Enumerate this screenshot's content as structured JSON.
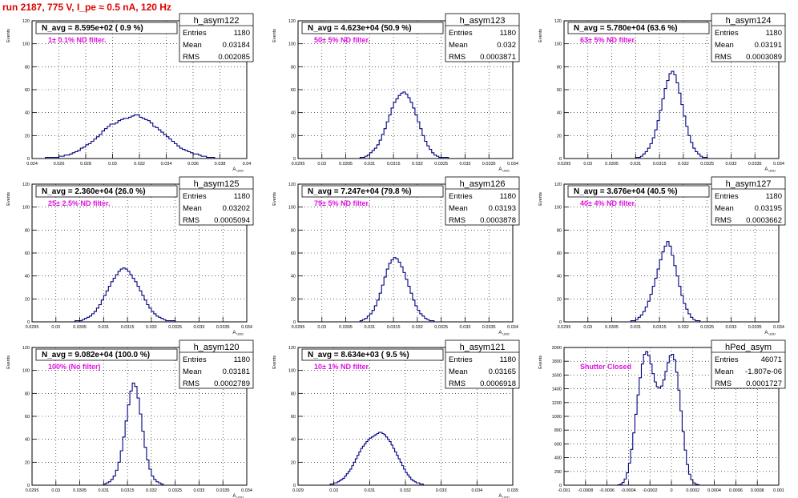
{
  "header": {
    "title": "run 2187,   775 V, I_pe ≈ 0.5 nA, 120 Hz"
  },
  "chart_data": [
    {
      "type": "histogram",
      "name": "h_asym122",
      "navg": "N_avg = 8.595e+02 ( 0.9 %)",
      "filter": "1± 0.1% ND filter.",
      "stats": {
        "entries": "1180",
        "mean": "0.03184",
        "rms": "0.002085"
      },
      "ylabel": "Events",
      "xlabel": "A_UDD",
      "xlim": [
        0.024,
        0.04
      ],
      "ylim": [
        0,
        120
      ],
      "xticks": [
        "0.024",
        "0.026",
        "0.028",
        "0.03",
        "0.032",
        "0.034",
        "0.036",
        "0.038",
        "0.04"
      ],
      "yticks": [
        "0",
        "20",
        "40",
        "60",
        "80",
        "100",
        "120"
      ],
      "bins": {
        "x0": 0.025,
        "width": 0.0002,
        "values": [
          1,
          1,
          1,
          1,
          1,
          2,
          2,
          3,
          3,
          4,
          5,
          6,
          7,
          9,
          10,
          12,
          13,
          15,
          17,
          19,
          21,
          24,
          26,
          28,
          30,
          30,
          31,
          33,
          34,
          35,
          35,
          36,
          37,
          38,
          38,
          36,
          35,
          34,
          33,
          31,
          28,
          27,
          25,
          23,
          21,
          19,
          17,
          15,
          13,
          11,
          9,
          8,
          7,
          6,
          5,
          4,
          4,
          3,
          2,
          2,
          1,
          1,
          1
        ]
      }
    },
    {
      "type": "histogram",
      "name": "h_asym123",
      "navg": "N_avg = 4.623e+04 (50.9 %)",
      "filter": "50± 5% ND filter.",
      "stats": {
        "entries": "1180",
        "mean": "0.032",
        "rms": "0.0003871"
      },
      "ylabel": "Events",
      "xlabel": "A_UDD",
      "xlim": [
        0.0295,
        0.034
      ],
      "ylim": [
        0,
        120
      ],
      "xticks": [
        "0.0295",
        "0.03",
        "0.0305",
        "0.031",
        "0.0315",
        "0.032",
        "0.0325",
        "0.033",
        "0.0335",
        "0.034"
      ],
      "yticks": [
        "0",
        "20",
        "40",
        "60",
        "80",
        "100",
        "120"
      ],
      "bins": {
        "x0": 0.0308,
        "width": 5e-05,
        "values": [
          1,
          1,
          2,
          3,
          5,
          7,
          9,
          12,
          16,
          21,
          26,
          32,
          38,
          44,
          49,
          52,
          55,
          57,
          58,
          56,
          53,
          49,
          44,
          38,
          32,
          26,
          20,
          15,
          11,
          8,
          5,
          3,
          2,
          1,
          1,
          1,
          1
        ]
      }
    },
    {
      "type": "histogram",
      "name": "h_asym124",
      "navg": "N_avg = 5.780e+04 (63.6 %)",
      "filter": "63± 5% ND filter.",
      "stats": {
        "entries": "1180",
        "mean": "0.03191",
        "rms": "0.0003089"
      },
      "ylabel": "Events",
      "xlabel": "A_UDD",
      "xlim": [
        0.0295,
        0.034
      ],
      "ylim": [
        0,
        120
      ],
      "xticks": [
        "0.0295",
        "0.03",
        "0.0305",
        "0.031",
        "0.0315",
        "0.032",
        "0.0325",
        "0.033",
        "0.0335",
        "0.034"
      ],
      "yticks": [
        "0",
        "20",
        "40",
        "60",
        "80",
        "100",
        "120"
      ],
      "bins": {
        "x0": 0.031,
        "width": 5e-05,
        "values": [
          1,
          1,
          2,
          4,
          6,
          9,
          13,
          18,
          25,
          33,
          42,
          52,
          61,
          68,
          74,
          76,
          73,
          66,
          57,
          47,
          37,
          28,
          20,
          14,
          9,
          6,
          4,
          2,
          1,
          1
        ]
      }
    },
    {
      "type": "histogram",
      "name": "h_asym125",
      "navg": "N_avg = 2.360e+04 (26.0 %)",
      "filter": "25± 2.5% ND filter.",
      "stats": {
        "entries": "1180",
        "mean": "0.03202",
        "rms": "0.0005094"
      },
      "ylabel": "Events",
      "xlabel": "A_UDD",
      "xlim": [
        0.0295,
        0.034
      ],
      "ylim": [
        0,
        120
      ],
      "xticks": [
        "0.0295",
        "0.03",
        "0.0305",
        "0.031",
        "0.0315",
        "0.032",
        "0.0325",
        "0.033",
        "0.0335",
        "0.034"
      ],
      "yticks": [
        "0",
        "20",
        "40",
        "60",
        "80",
        "100",
        "120"
      ],
      "bins": {
        "x0": 0.0304,
        "width": 5e-05,
        "values": [
          1,
          1,
          1,
          2,
          3,
          4,
          5,
          7,
          9,
          12,
          15,
          19,
          23,
          27,
          31,
          35,
          38,
          41,
          44,
          46,
          47,
          46,
          44,
          41,
          38,
          35,
          31,
          27,
          23,
          19,
          15,
          12,
          9,
          7,
          5,
          4,
          3,
          2,
          1,
          1,
          1,
          1
        ]
      }
    },
    {
      "type": "histogram",
      "name": "h_asym126",
      "navg": "N_avg = 7.247e+04 (79.8 %)",
      "filter": "79± 5% ND filter.",
      "stats": {
        "entries": "1180",
        "mean": "0.03193",
        "rms": "0.0003878"
      },
      "ylabel": "Events",
      "xlabel": "A_UDD",
      "xlim": [
        0.0295,
        0.034
      ],
      "ylim": [
        0,
        120
      ],
      "xticks": [
        "0.0295",
        "0.03",
        "0.0305",
        "0.031",
        "0.0315",
        "0.032",
        "0.0325",
        "0.033",
        "0.0335",
        "0.034"
      ],
      "yticks": [
        "0",
        "20",
        "40",
        "60",
        "80",
        "100",
        "120"
      ],
      "bins": {
        "x0": 0.0308,
        "width": 5e-05,
        "values": [
          1,
          2,
          3,
          5,
          7,
          10,
          14,
          19,
          25,
          32,
          39,
          46,
          51,
          54,
          56,
          55,
          52,
          48,
          43,
          37,
          31,
          25,
          19,
          14,
          10,
          7,
          5,
          3,
          2,
          1,
          1
        ]
      }
    },
    {
      "type": "histogram",
      "name": "h_asym127",
      "navg": "N_avg = 3.676e+04 (40.5 %)",
      "filter": "40± 4% ND filter.",
      "stats": {
        "entries": "1180",
        "mean": "0.03195",
        "rms": "0.0003662"
      },
      "ylabel": "Events",
      "xlabel": "A_UDD",
      "xlim": [
        0.0295,
        0.034
      ],
      "ylim": [
        0,
        120
      ],
      "xticks": [
        "0.0295",
        "0.03",
        "0.0305",
        "0.031",
        "0.0315",
        "0.032",
        "0.0325",
        "0.033",
        "0.0335",
        "0.034"
      ],
      "yticks": [
        "0",
        "20",
        "40",
        "60",
        "80",
        "100",
        "120"
      ],
      "bins": {
        "x0": 0.0309,
        "width": 5e-05,
        "values": [
          1,
          1,
          2,
          4,
          6,
          9,
          13,
          18,
          24,
          31,
          38,
          46,
          54,
          61,
          66,
          70,
          66,
          58,
          49,
          40,
          31,
          23,
          16,
          11,
          7,
          4,
          2,
          1,
          1
        ]
      }
    },
    {
      "type": "histogram",
      "name": "h_asym120",
      "navg": "N_avg = 9.082e+04 (100.0 %)",
      "filter": "100% (No filter)",
      "stats": {
        "entries": "1180",
        "mean": "0.03181",
        "rms": "0.0002789"
      },
      "ylabel": "Events",
      "xlabel": "A_UDD",
      "xlim": [
        0.0295,
        0.034
      ],
      "ylim": [
        0,
        120
      ],
      "xticks": [
        "0.0295",
        "0.03",
        "0.0305",
        "0.031",
        "0.0315",
        "0.032",
        "0.0325",
        "0.033",
        "0.0335",
        "0.034"
      ],
      "yticks": [
        "0",
        "20",
        "40",
        "60",
        "80",
        "100",
        "120"
      ],
      "bins": {
        "x0": 0.031,
        "width": 5e-05,
        "values": [
          1,
          2,
          3,
          5,
          8,
          13,
          20,
          30,
          42,
          56,
          70,
          82,
          89,
          86,
          76,
          62,
          47,
          33,
          22,
          14,
          8,
          5,
          3,
          2,
          1
        ]
      }
    },
    {
      "type": "histogram",
      "name": "h_asym121",
      "navg": "N_avg = 8.634e+03 ( 9.5 %)",
      "filter": "10± 1% ND filter.",
      "stats": {
        "entries": "1180",
        "mean": "0.03165",
        "rms": "0.0006918"
      },
      "ylabel": "Events",
      "xlabel": "A_UDD",
      "xlim": [
        0.029,
        0.035
      ],
      "ylim": [
        0,
        120
      ],
      "xticks": [
        "0.029",
        "0.03",
        "0.031",
        "0.032",
        "0.033",
        "0.034",
        "0.035"
      ],
      "yticks": [
        "0",
        "20",
        "40",
        "60",
        "80",
        "100",
        "120"
      ],
      "bins": {
        "x0": 0.0299,
        "width": 5e-05,
        "values": [
          1,
          1,
          2,
          2,
          3,
          4,
          5,
          6,
          8,
          10,
          12,
          14,
          17,
          20,
          23,
          26,
          29,
          32,
          34,
          36,
          38,
          40,
          41,
          42,
          43,
          44,
          45,
          46,
          46,
          45,
          44,
          42,
          40,
          38,
          35,
          32,
          29,
          26,
          23,
          20,
          17,
          14,
          11,
          9,
          7,
          5,
          4,
          3,
          2,
          2,
          1,
          1
        ]
      }
    },
    {
      "type": "histogram",
      "name": "hPed_asym",
      "navg": "",
      "filter": "Shutter Closed",
      "stats": {
        "entries": "46071",
        "mean": "-1.807e-06",
        "rms": "0.0001727"
      },
      "ylabel": "Events",
      "xlabel": "",
      "xlim": [
        -0.001,
        0.001
      ],
      "ylim": [
        0,
        2000
      ],
      "xticks": [
        "-0.001",
        "-0.0008",
        "-0.0006",
        "-0.0004",
        "-0.0002",
        "0",
        "0.0002",
        "0.0004",
        "0.0006",
        "0.0008",
        "0.001"
      ],
      "yticks": [
        "0",
        "200",
        "400",
        "600",
        "800",
        "1000",
        "1200",
        "1400",
        "1600",
        "1800",
        "2000"
      ],
      "bins": {
        "x0": -0.0005,
        "width": 2e-05,
        "values": [
          5,
          15,
          40,
          90,
          180,
          320,
          520,
          760,
          1030,
          1310,
          1560,
          1760,
          1900,
          1940,
          1880,
          1760,
          1620,
          1500,
          1430,
          1410,
          1440,
          1530,
          1650,
          1780,
          1880,
          1900,
          1820,
          1640,
          1380,
          1080,
          780,
          510,
          300,
          160,
          80,
          35,
          15,
          6
        ]
      }
    }
  ]
}
